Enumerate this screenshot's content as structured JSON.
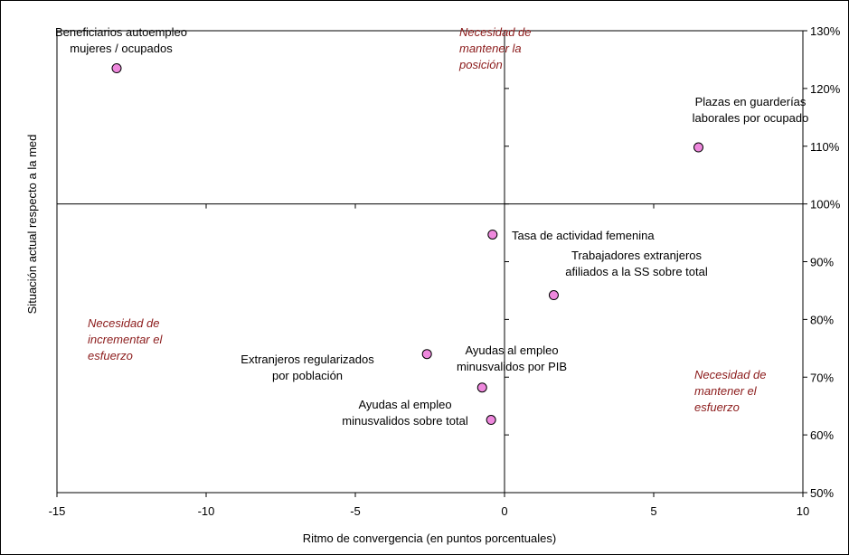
{
  "chart_data": {
    "type": "scatter",
    "title": "",
    "xlabel": "Ritmo de convergencia (en puntos porcentuales)",
    "ylabel": "Situación actual respecto a la med",
    "xlim": [
      -15,
      10
    ],
    "ylim": [
      50,
      130
    ],
    "x_ticks": [
      "-15",
      "-10",
      "-5",
      "0",
      "5",
      "10"
    ],
    "y_ticks": [
      "50%",
      "60%",
      "70%",
      "80%",
      "90%",
      "100%",
      "110%",
      "120%",
      "130%"
    ],
    "x_tick_values": [
      -15,
      -10,
      -5,
      0,
      5,
      10
    ],
    "y_tick_values": [
      50,
      60,
      70,
      80,
      90,
      100,
      110,
      120,
      130
    ],
    "crossing": {
      "x": 0,
      "y": 100
    },
    "marker_color": "#ee88dd",
    "quadrant_label_color": "#8b1a1a",
    "points": [
      {
        "x": -13.0,
        "y": 123.5,
        "label": [
          "Beneficiarios autoempleo",
          "mujeres / ocupados"
        ]
      },
      {
        "x": 6.5,
        "y": 109.8,
        "label": [
          "Plazas en guarderías",
          "laborales por ocupado"
        ]
      },
      {
        "x": -0.4,
        "y": 94.7,
        "label": [
          "Tasa  de actividad femenina"
        ]
      },
      {
        "x": 1.65,
        "y": 84.2,
        "label": [
          "Trabajadores extranjeros",
          "afiliados a la SS sobre total"
        ]
      },
      {
        "x": -2.6,
        "y": 74.0,
        "label": [
          "Extranjeros regularizados",
          "por población"
        ]
      },
      {
        "x": -0.75,
        "y": 68.2,
        "label": [
          "Ayudas al empleo",
          "minusvalidos por PIB"
        ]
      },
      {
        "x": -0.45,
        "y": 62.6,
        "label": [
          "Ayudas al empleo",
          "minusvalidos sobre total"
        ]
      }
    ],
    "quadrant_labels": [
      {
        "position": "top-center",
        "lines": [
          "Necesidad de",
          "mantener la",
          "posición"
        ]
      },
      {
        "position": "left-lower",
        "lines": [
          "Necesidad de",
          "incrementar el",
          "esfuerzo"
        ]
      },
      {
        "position": "right-lower",
        "lines": [
          "Necesidad de",
          "mantener el",
          "esfuerzo"
        ]
      }
    ]
  }
}
